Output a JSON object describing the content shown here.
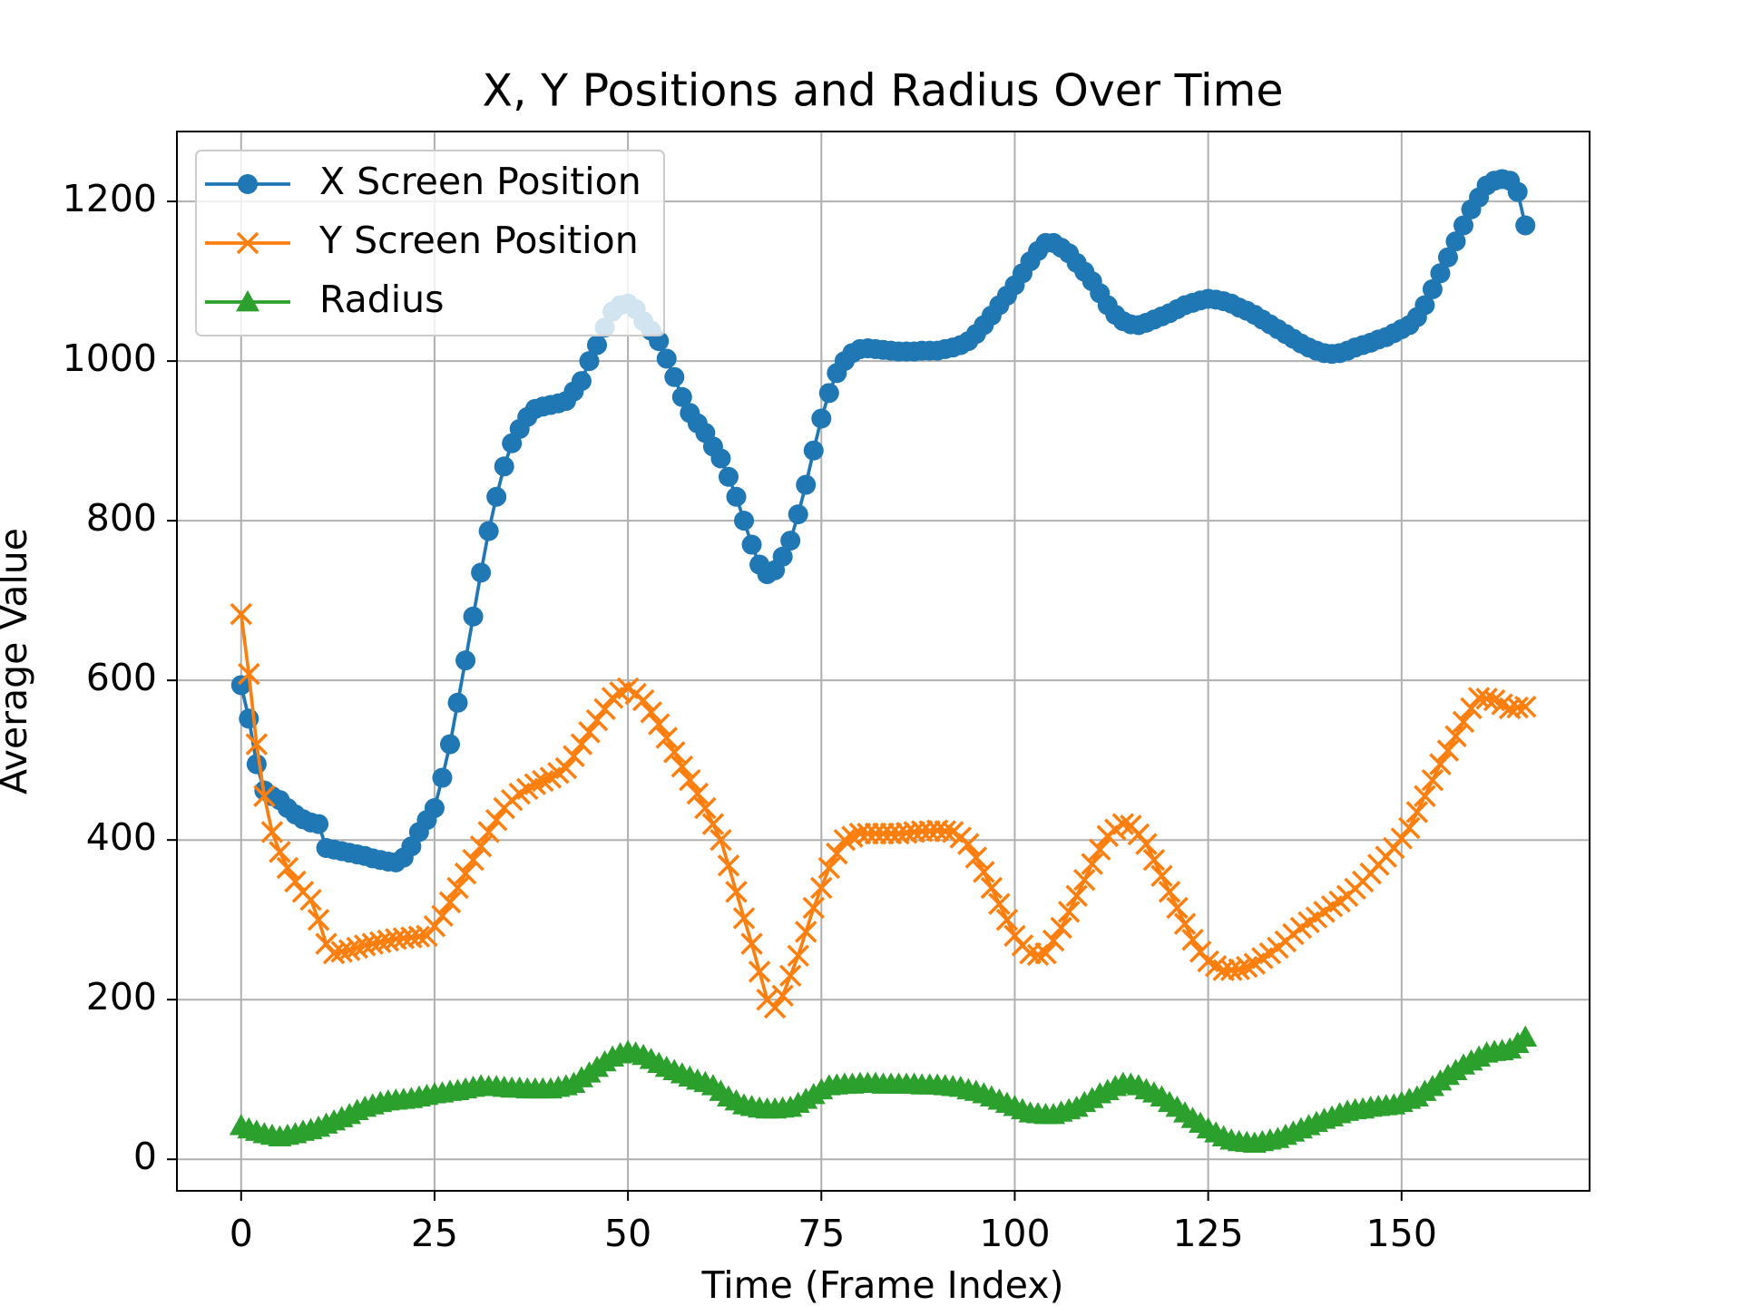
{
  "chart_data": {
    "type": "line",
    "title": "X, Y Positions and Radius Over Time",
    "x_label": "Time (Frame Index)",
    "y_label": "Average Value",
    "xlim": [
      -8.3,
      174.3
    ],
    "ylim": [
      -39.5,
      1287.6
    ],
    "xticks": [
      0,
      25,
      50,
      75,
      100,
      125,
      150
    ],
    "yticks": [
      0,
      200,
      400,
      600,
      800,
      1000,
      1200
    ],
    "grid": true,
    "legend": "upper left",
    "x": [
      0,
      1,
      2,
      3,
      4,
      5,
      6,
      7,
      8,
      9,
      10,
      11,
      12,
      13,
      14,
      15,
      16,
      17,
      18,
      19,
      20,
      21,
      22,
      23,
      24,
      25,
      26,
      27,
      28,
      29,
      30,
      31,
      32,
      33,
      34,
      35,
      36,
      37,
      38,
      39,
      40,
      41,
      42,
      43,
      44,
      45,
      46,
      47,
      48,
      49,
      50,
      51,
      52,
      53,
      54,
      55,
      56,
      57,
      58,
      59,
      60,
      61,
      62,
      63,
      64,
      65,
      66,
      67,
      68,
      69,
      70,
      71,
      72,
      73,
      74,
      75,
      76,
      77,
      78,
      79,
      80,
      81,
      82,
      83,
      84,
      85,
      86,
      87,
      88,
      89,
      90,
      91,
      92,
      93,
      94,
      95,
      96,
      97,
      98,
      99,
      100,
      101,
      102,
      103,
      104,
      105,
      106,
      107,
      108,
      109,
      110,
      111,
      112,
      113,
      114,
      115,
      116,
      117,
      118,
      119,
      120,
      121,
      122,
      123,
      124,
      125,
      126,
      127,
      128,
      129,
      130,
      131,
      132,
      133,
      134,
      135,
      136,
      137,
      138,
      139,
      140,
      141,
      142,
      143,
      144,
      145,
      146,
      147,
      148,
      149,
      150,
      151,
      152,
      153,
      154,
      155,
      156,
      157,
      158,
      159,
      160,
      161,
      162,
      163,
      164,
      165,
      166
    ],
    "series": [
      {
        "name": "X Screen Position",
        "color": "#1f77b4",
        "marker": "o",
        "values": [
          594,
          552,
          495,
          462,
          455,
          450,
          440,
          432,
          426,
          422,
          420,
          390,
          388,
          386,
          384,
          382,
          380,
          377,
          375,
          373,
          372,
          378,
          392,
          410,
          425,
          440,
          478,
          520,
          572,
          625,
          680,
          735,
          787,
          830,
          868,
          897,
          915,
          930,
          940,
          943,
          945,
          947,
          950,
          962,
          975,
          1000,
          1020,
          1042,
          1062,
          1070,
          1072,
          1065,
          1050,
          1038,
          1025,
          1003,
          980,
          955,
          935,
          922,
          910,
          893,
          878,
          855,
          830,
          800,
          770,
          745,
          733,
          738,
          755,
          775,
          808,
          845,
          888,
          928,
          960,
          985,
          1000,
          1010,
          1015,
          1016,
          1015,
          1014,
          1013,
          1012,
          1012,
          1012,
          1013,
          1013,
          1013,
          1015,
          1017,
          1020,
          1025,
          1034,
          1045,
          1057,
          1070,
          1082,
          1095,
          1110,
          1125,
          1138,
          1148,
          1148,
          1142,
          1135,
          1123,
          1112,
          1100,
          1085,
          1070,
          1058,
          1050,
          1046,
          1045,
          1048,
          1052,
          1056,
          1060,
          1065,
          1070,
          1073,
          1076,
          1078,
          1077,
          1075,
          1072,
          1067,
          1063,
          1058,
          1052,
          1046,
          1040,
          1034,
          1028,
          1022,
          1017,
          1013,
          1010,
          1009,
          1010,
          1013,
          1017,
          1020,
          1023,
          1027,
          1030,
          1035,
          1040,
          1045,
          1055,
          1070,
          1090,
          1110,
          1130,
          1150,
          1170,
          1190,
          1205,
          1220,
          1226,
          1228,
          1226,
          1212,
          1170
        ]
      },
      {
        "name": "Y Screen Position",
        "color": "#ff7f0e",
        "marker": "x",
        "values": [
          683,
          608,
          520,
          455,
          410,
          385,
          365,
          348,
          335,
          325,
          300,
          270,
          258,
          260,
          262,
          265,
          268,
          270,
          272,
          274,
          276,
          277,
          278,
          279,
          280,
          292,
          305,
          322,
          340,
          358,
          375,
          392,
          410,
          425,
          440,
          450,
          458,
          464,
          470,
          474,
          478,
          484,
          490,
          505,
          520,
          535,
          550,
          564,
          578,
          585,
          590,
          583,
          575,
          560,
          545,
          528,
          510,
          492,
          475,
          458,
          440,
          420,
          400,
          368,
          335,
          302,
          270,
          235,
          200,
          190,
          205,
          230,
          255,
          285,
          315,
          340,
          365,
          383,
          400,
          404,
          408,
          408,
          408,
          408,
          408,
          408,
          409,
          410,
          411,
          411,
          412,
          411,
          410,
          403,
          395,
          378,
          360,
          340,
          320,
          300,
          280,
          268,
          258,
          256,
          258,
          274,
          290,
          310,
          330,
          350,
          370,
          388,
          405,
          413,
          420,
          418,
          407,
          395,
          375,
          355,
          335,
          315,
          295,
          275,
          260,
          248,
          242,
          237,
          237,
          238,
          241,
          245,
          252,
          258,
          265,
          273,
          282,
          290,
          297,
          303,
          310,
          317,
          323,
          330,
          339,
          348,
          358,
          369,
          379,
          390,
          402,
          415,
          435,
          455,
          475,
          495,
          512,
          530,
          548,
          565,
          578,
          577,
          575,
          570,
          565,
          566,
          567
        ]
      },
      {
        "name": "Radius",
        "color": "#2ca02c",
        "marker": "^",
        "values": [
          42,
          38,
          35,
          32,
          30,
          28,
          30,
          32,
          35,
          37,
          40,
          44,
          48,
          52,
          56,
          61,
          65,
          68,
          71,
          73,
          74,
          75,
          76,
          78,
          80,
          82,
          83,
          85,
          86,
          88,
          90,
          92,
          91,
          91,
          90,
          89,
          89,
          88,
          88,
          88,
          88,
          90,
          92,
          95,
          102,
          108,
          115,
          122,
          128,
          132,
          135,
          133,
          130,
          125,
          120,
          115,
          111,
          107,
          103,
          99,
          96,
          92,
          85,
          78,
          73,
          68,
          66,
          64,
          63,
          63,
          64,
          65,
          70,
          75,
          81,
          87,
          92,
          93,
          94,
          94,
          95,
          95,
          95,
          94,
          94,
          94,
          94,
          94,
          93,
          93,
          93,
          92,
          91,
          90,
          87,
          85,
          82,
          78,
          74,
          70,
          66,
          62,
          58,
          57,
          56,
          56,
          59,
          62,
          65,
          71,
          76,
          82,
          86,
          91,
          95,
          94,
          92,
          87,
          83,
          78,
          71,
          65,
          58,
          51,
          45,
          38,
          33,
          28,
          24,
          22,
          21,
          20,
          22,
          24,
          26,
          30,
          34,
          38,
          42,
          46,
          50,
          53,
          57,
          60,
          62,
          63,
          65,
          66,
          67,
          68,
          71,
          75,
          78,
          85,
          91,
          98,
          105,
          111,
          118,
          123,
          128,
          133,
          135,
          136,
          138,
          145,
          153
        ]
      }
    ]
  }
}
